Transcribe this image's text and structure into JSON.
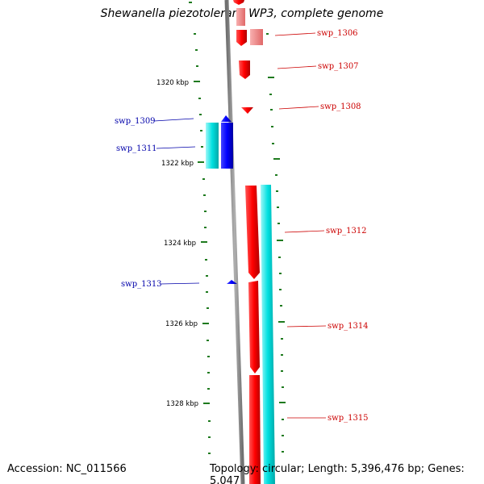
{
  "title": "Shewanella piezotolerans WP3, complete genome",
  "footer": {
    "accession": "Accession: NC_011566",
    "topology": "Topology: circular; Length: 5,396,476 bp; Genes: 5,047"
  },
  "colors": {
    "backbone": "#8c8c8c",
    "forward_cds": "#ff0000",
    "forward_pale": "#f08080",
    "reverse_cds": "#0000ff",
    "reverse_cyan": "#00e5e5",
    "tick": "#1e7a1e",
    "forward_label": "#cc0000",
    "reverse_label": "#0000aa"
  },
  "ticks": {
    "labels": [
      "1320 kbp",
      "1322 kbp",
      "1324 kbp",
      "1326 kbp",
      "1328 kbp"
    ]
  },
  "genes": [
    {
      "name": "swp_1306",
      "strand": "forward"
    },
    {
      "name": "swp_1307",
      "strand": "forward"
    },
    {
      "name": "swp_1308",
      "strand": "forward"
    },
    {
      "name": "swp_1309",
      "strand": "reverse"
    },
    {
      "name": "swp_1311",
      "strand": "reverse"
    },
    {
      "name": "swp_1312",
      "strand": "forward"
    },
    {
      "name": "swp_1313",
      "strand": "reverse"
    },
    {
      "name": "swp_1314",
      "strand": "forward"
    },
    {
      "name": "swp_1315",
      "strand": "forward"
    }
  ]
}
